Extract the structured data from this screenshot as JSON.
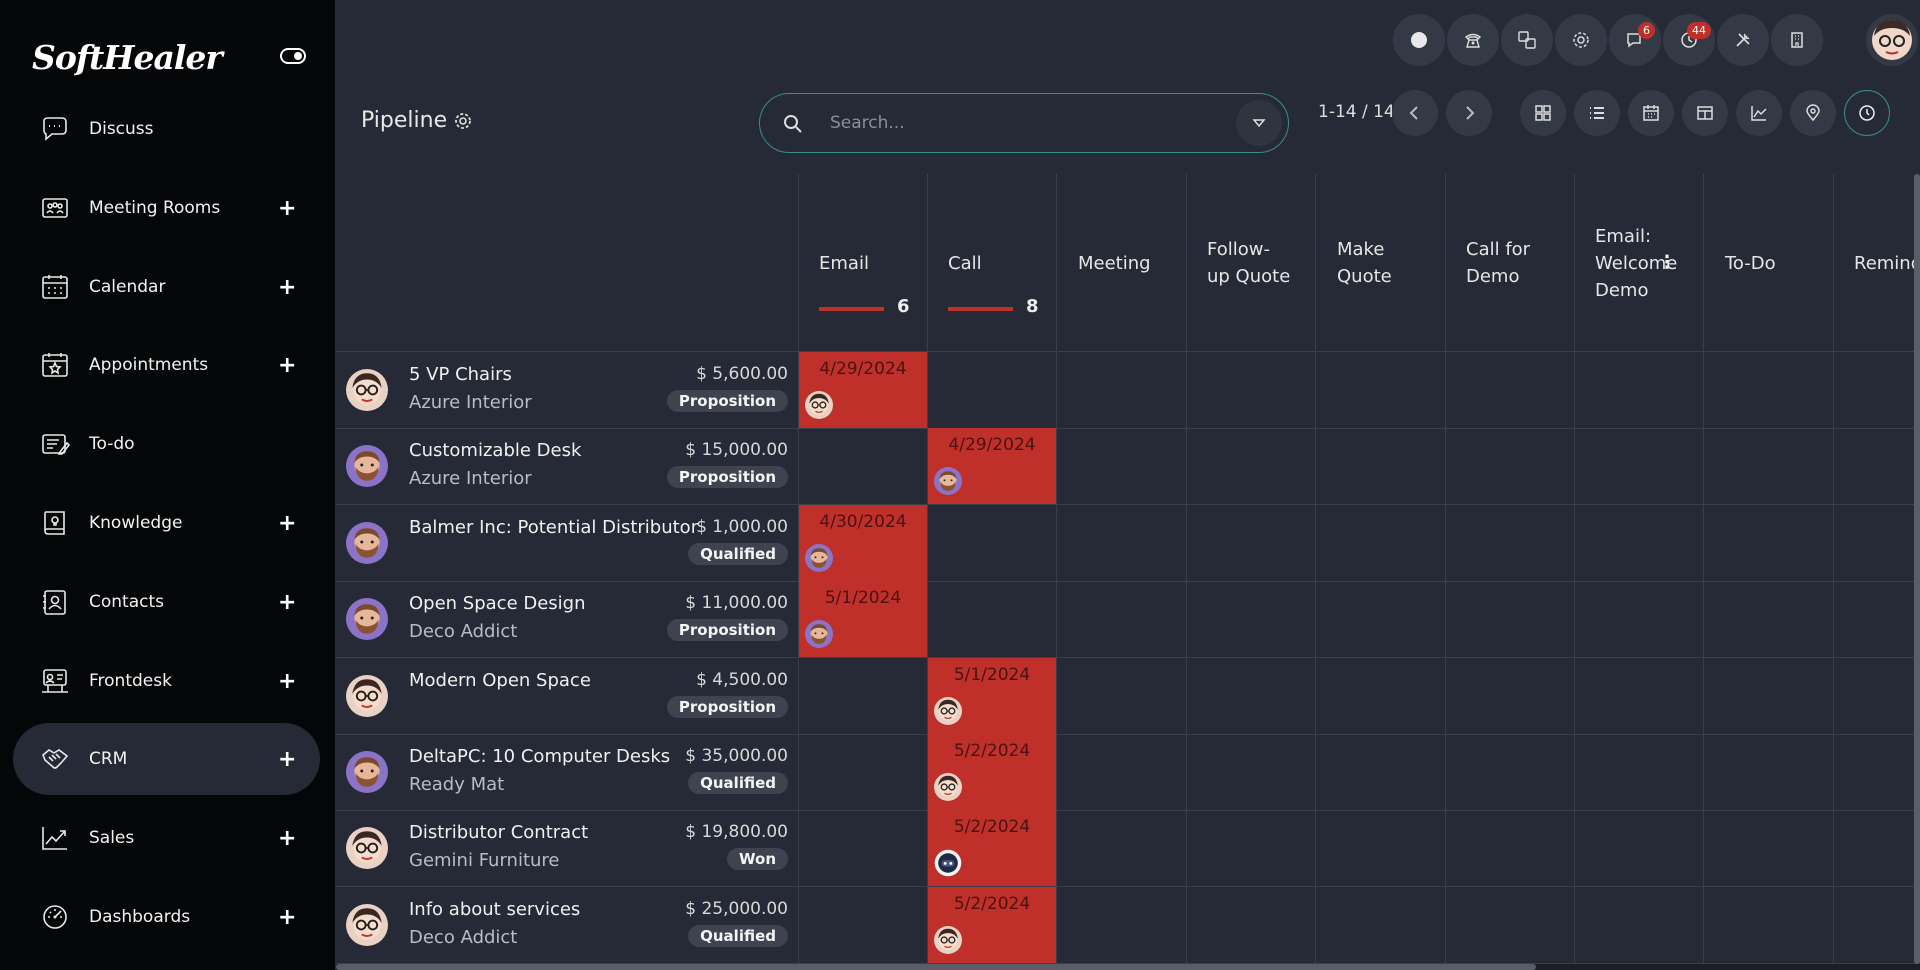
{
  "brand": {
    "logo_text": "SoftHealer"
  },
  "sidebar": {
    "items": [
      {
        "label": "Discuss",
        "icon": "chat-bubble-icon",
        "plus": false
      },
      {
        "label": "Meeting Rooms",
        "icon": "meeting-room-icon",
        "plus": true
      },
      {
        "label": "Calendar",
        "icon": "calendar-icon",
        "plus": true
      },
      {
        "label": "Appointments",
        "icon": "appointment-icon",
        "plus": true
      },
      {
        "label": "To-do",
        "icon": "todo-icon",
        "plus": false
      },
      {
        "label": "Knowledge",
        "icon": "knowledge-book-icon",
        "plus": true
      },
      {
        "label": "Contacts",
        "icon": "contacts-icon",
        "plus": true
      },
      {
        "label": "Frontdesk",
        "icon": "frontdesk-icon",
        "plus": true
      },
      {
        "label": "CRM",
        "icon": "handshake-icon",
        "plus": true,
        "active": true
      },
      {
        "label": "Sales",
        "icon": "sales-chart-icon",
        "plus": true
      },
      {
        "label": "Dashboards",
        "icon": "dashboard-gauge-icon",
        "plus": true
      }
    ],
    "plus_symbol": "+"
  },
  "topbar": {
    "badges": {
      "messages": "6",
      "activities": "44"
    }
  },
  "control": {
    "title": "Pipeline",
    "search_placeholder": "Search...",
    "pager": "1-14 / 14"
  },
  "columns": [
    {
      "label": "Email",
      "count": "6",
      "bar": true
    },
    {
      "label": "Call",
      "count": "8",
      "bar": true
    },
    {
      "label": "Meeting"
    },
    {
      "label": "Follow-\nup Quote"
    },
    {
      "label": "Make\nQuote"
    },
    {
      "label": "Call for\nDemo"
    },
    {
      "label": "Email:\nWelcome\nDemo",
      "menu": "⋮"
    },
    {
      "label": "To-Do"
    },
    {
      "label": "Remind"
    }
  ],
  "rows": [
    {
      "name": "5 VP Chairs",
      "customer": "Azure Interior",
      "amount": "$ 5,600.00",
      "stage": "Proposition",
      "avatar": "user-glasses",
      "activity_col": 0,
      "date": "4/29/2024",
      "activity_avatar": "user-glasses"
    },
    {
      "name": "Customizable Desk",
      "customer": "Azure Interior",
      "amount": "$ 15,000.00",
      "stage": "Proposition",
      "avatar": "user-beard",
      "activity_col": 1,
      "date": "4/29/2024",
      "activity_avatar": "user-beard"
    },
    {
      "name": "Balmer Inc: Potential Distributor",
      "customer": "",
      "amount": "$ 1,000.00",
      "stage": "Qualified",
      "avatar": "user-beard",
      "activity_col": 0,
      "date": "4/30/2024",
      "activity_avatar": "user-beard"
    },
    {
      "name": "Open Space Design",
      "customer": "Deco Addict",
      "amount": "$ 11,000.00",
      "stage": "Proposition",
      "avatar": "user-beard",
      "activity_col": 0,
      "date": "5/1/2024",
      "activity_avatar": "user-beard"
    },
    {
      "name": "Modern Open Space",
      "customer": "",
      "amount": "$ 4,500.00",
      "stage": "Proposition",
      "avatar": "user-glasses",
      "activity_col": 1,
      "date": "5/1/2024",
      "activity_avatar": "user-glasses"
    },
    {
      "name": "DeltaPC: 10 Computer Desks",
      "customer": "Ready Mat",
      "amount": "$ 35,000.00",
      "stage": "Qualified",
      "avatar": "user-beard",
      "activity_col": 1,
      "date": "5/2/2024",
      "activity_avatar": "user-glasses"
    },
    {
      "name": "Distributor Contract",
      "customer": "Gemini Furniture",
      "amount": "$ 19,800.00",
      "stage": "Won",
      "avatar": "user-glasses",
      "activity_col": 1,
      "date": "5/2/2024",
      "activity_avatar": "bot"
    },
    {
      "name": "Info about services",
      "customer": "Deco Addict",
      "amount": "$ 25,000.00",
      "stage": "Qualified",
      "avatar": "user-glasses",
      "activity_col": 1,
      "date": "5/2/2024",
      "activity_avatar": "user-glasses"
    }
  ],
  "colors": {
    "overdue": "#c0302b",
    "accent": "#3b8c8a",
    "sidebar": "#050608",
    "bg": "#262a36"
  }
}
